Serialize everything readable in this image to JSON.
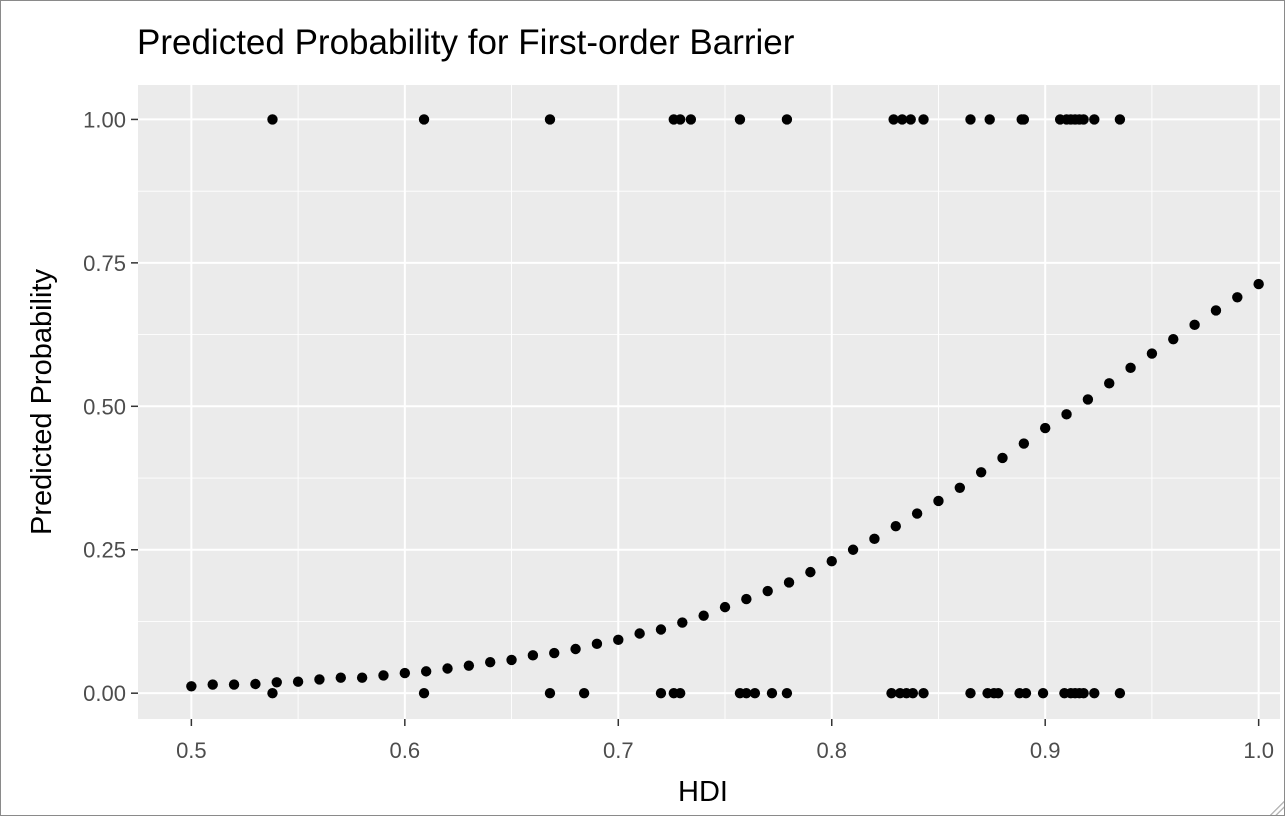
{
  "chart_data": {
    "type": "scatter",
    "title": "Predicted Probability for First-order Barrier",
    "xlabel": "HDI",
    "ylabel": "Predicted Probability",
    "xlim": [
      0.475,
      1.01
    ],
    "ylim": [
      -0.045,
      1.06
    ],
    "xticks": [
      0.5,
      0.6,
      0.7,
      0.8,
      0.9,
      1.0
    ],
    "xtick_labels": [
      "0.5",
      "0.6",
      "0.7",
      "0.8",
      "0.9",
      "1.0"
    ],
    "yticks": [
      0.0,
      0.25,
      0.5,
      0.75,
      1.0
    ],
    "ytick_labels": [
      "0.00",
      "0.25",
      "0.50",
      "0.75",
      "1.00"
    ],
    "grid": true,
    "panel_background": "#EBEBEB",
    "grid_color": "#FFFFFF",
    "point_color": "#000000",
    "series": [
      {
        "x": [
          0.5,
          0.51,
          0.52,
          0.53,
          0.54,
          0.55,
          0.56,
          0.57,
          0.58,
          0.59,
          0.6,
          0.61,
          0.62,
          0.63,
          0.64,
          0.65,
          0.66,
          0.67,
          0.68,
          0.69,
          0.7,
          0.71,
          0.72,
          0.73,
          0.74,
          0.75,
          0.76,
          0.77,
          0.78,
          0.79,
          0.8,
          0.81,
          0.82,
          0.83,
          0.84,
          0.85,
          0.86,
          0.87,
          0.88,
          0.89,
          0.9,
          0.91,
          0.92,
          0.93,
          0.94,
          0.95,
          0.96,
          0.97,
          0.98,
          0.99,
          1.0
        ],
        "y": [
          0.012,
          0.015,
          0.015,
          0.016,
          0.019,
          0.02,
          0.024,
          0.027,
          0.027,
          0.031,
          0.035,
          0.038,
          0.043,
          0.048,
          0.054,
          0.058,
          0.066,
          0.07,
          0.077,
          0.086,
          0.093,
          0.104,
          0.111,
          0.123,
          0.135,
          0.15,
          0.164,
          0.178,
          0.193,
          0.211,
          0.23,
          0.25,
          0.269,
          0.291,
          0.313,
          0.335,
          0.358,
          0.385,
          0.41,
          0.435,
          0.462,
          0.486,
          0.512,
          0.54,
          0.567,
          0.592,
          0.617,
          0.642,
          0.667,
          0.69,
          0.713
        ]
      },
      {
        "x": [
          0.538,
          0.609,
          0.668,
          0.726,
          0.729,
          0.734,
          0.757,
          0.779,
          0.829,
          0.833,
          0.837,
          0.843,
          0.865,
          0.874,
          0.889,
          0.89,
          0.907,
          0.91,
          0.912,
          0.914,
          0.916,
          0.918,
          0.923,
          0.935
        ],
        "y": [
          1,
          1,
          1,
          1,
          1,
          1,
          1,
          1,
          1,
          1,
          1,
          1,
          1,
          1,
          1,
          1,
          1,
          1,
          1,
          1,
          1,
          1,
          1,
          1
        ]
      },
      {
        "x": [
          0.538,
          0.609,
          0.668,
          0.684,
          0.72,
          0.726,
          0.729,
          0.757,
          0.76,
          0.764,
          0.772,
          0.779,
          0.828,
          0.832,
          0.835,
          0.838,
          0.843,
          0.865,
          0.873,
          0.876,
          0.878,
          0.888,
          0.891,
          0.899,
          0.909,
          0.912,
          0.914,
          0.916,
          0.918,
          0.923,
          0.935
        ],
        "y": [
          0,
          0,
          0,
          0,
          0,
          0,
          0,
          0,
          0,
          0,
          0,
          0,
          0,
          0,
          0,
          0,
          0,
          0,
          0,
          0,
          0,
          0,
          0,
          0,
          0,
          0,
          0,
          0,
          0,
          0,
          0
        ]
      }
    ]
  }
}
